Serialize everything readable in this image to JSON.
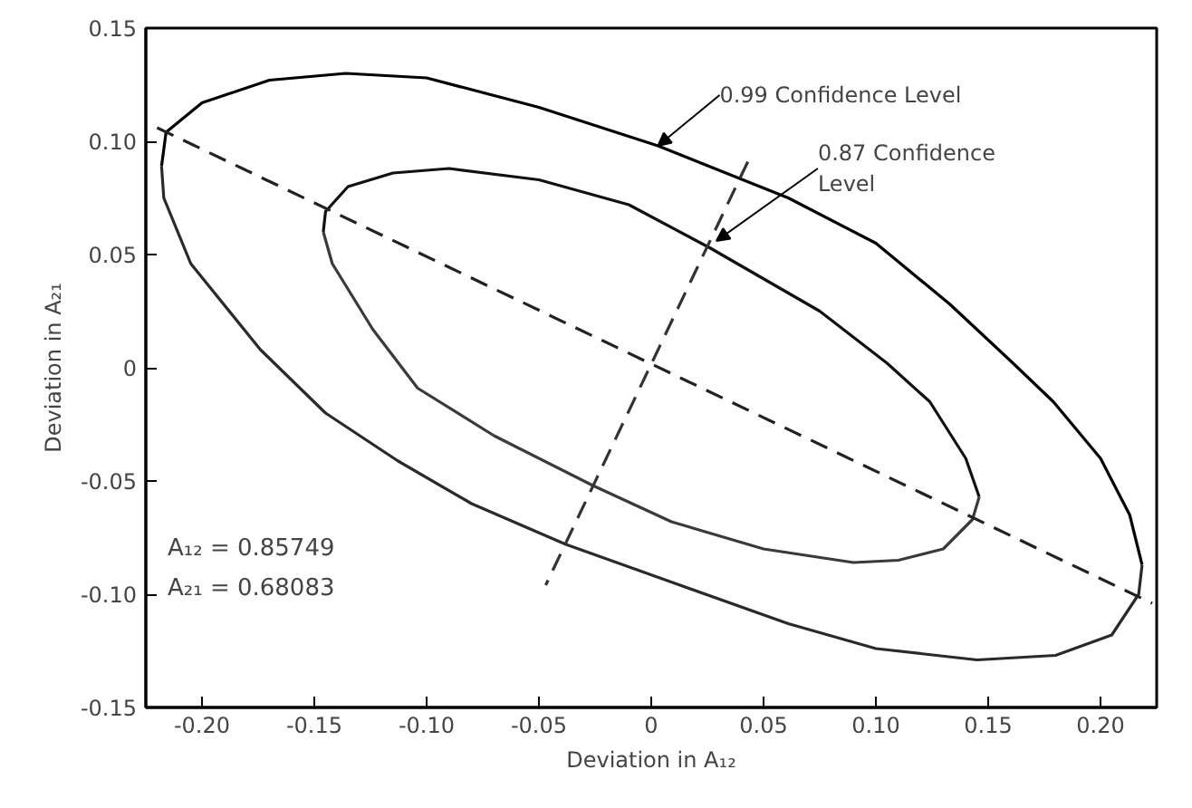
{
  "chart_data": {
    "type": "line",
    "xlabel": "Deviation in A₁₂",
    "ylabel": "Deviation in A₂₁",
    "xlim": [
      -0.225,
      0.225
    ],
    "ylim": [
      -0.15,
      0.15
    ],
    "xticks": [
      {
        "value": -0.2,
        "label": "-0.20"
      },
      {
        "value": -0.15,
        "label": "-0.15"
      },
      {
        "value": -0.1,
        "label": "-0.10"
      },
      {
        "value": -0.05,
        "label": "-0.05"
      },
      0,
      0.05,
      {
        "value": 0.1,
        "label": "0.10"
      },
      0.15,
      {
        "value": 0.2,
        "label": "0.20"
      }
    ],
    "yticks": [
      {
        "value": -0.15,
        "label": "-0.15"
      },
      {
        "value": -0.1,
        "label": "-0.10"
      },
      {
        "value": -0.05,
        "label": "-0.05"
      },
      0,
      0.05,
      {
        "value": 0.1,
        "label": "0.10"
      },
      0.15
    ],
    "grid": false,
    "marker": "none",
    "series": [
      {
        "color": "#000000",
        "line_style": "solid",
        "x": [
          -0.218,
          -0.216,
          -0.2,
          -0.17,
          -0.136,
          -0.1,
          -0.05,
          0.003,
          0.061,
          0.1,
          0.133,
          0.16,
          0.179,
          0.2,
          0.213,
          0.2185
        ],
        "values": [
          0.089,
          0.104,
          0.117,
          0.127,
          0.13,
          0.128,
          0.115,
          0.098,
          0.075,
          0.055,
          0.028,
          0.003,
          -0.015,
          -0.04,
          -0.065,
          -0.087
        ]
      },
      {
        "color": "#2a2a2a",
        "line_style": "solid",
        "x": [
          -0.218,
          -0.217,
          -0.205,
          -0.174,
          -0.145,
          -0.113,
          -0.08,
          -0.038,
          0.01,
          0.061,
          0.1,
          0.145,
          0.18,
          0.205,
          0.217,
          0.2185
        ],
        "values": [
          0.089,
          0.075,
          0.046,
          0.008,
          -0.02,
          -0.041,
          -0.06,
          -0.078,
          -0.095,
          -0.113,
          -0.124,
          -0.129,
          -0.127,
          -0.118,
          -0.1,
          -0.087
        ]
      },
      {
        "color": "#111111",
        "line_style": "solid",
        "x": [
          -0.146,
          -0.145,
          -0.135,
          -0.115,
          -0.09,
          -0.05,
          -0.01,
          0.026,
          0.075,
          0.105,
          0.124,
          0.14,
          0.146
        ],
        "values": [
          0.06,
          0.069,
          0.08,
          0.086,
          0.088,
          0.083,
          0.072,
          0.053,
          0.025,
          0.002,
          -0.015,
          -0.04,
          -0.057
        ]
      },
      {
        "color": "#3a3a3a",
        "line_style": "solid",
        "x": [
          -0.146,
          -0.142,
          -0.124,
          -0.104,
          -0.07,
          -0.026,
          0.009,
          0.05,
          0.09,
          0.11,
          0.13,
          0.143,
          0.146
        ],
        "values": [
          0.06,
          0.046,
          0.017,
          -0.009,
          -0.03,
          -0.052,
          -0.068,
          -0.08,
          -0.086,
          -0.085,
          -0.08,
          -0.067,
          -0.057
        ]
      },
      {
        "color": "#222222",
        "line_style": "dashed",
        "x": [
          -0.22,
          0.223
        ],
        "values": [
          0.106,
          -0.104
        ]
      },
      {
        "color": "#333333",
        "line_style": "dashed",
        "x": [
          0.043,
          -0.047
        ],
        "values": [
          0.091,
          -0.096
        ]
      }
    ],
    "annotations": [
      {
        "text": "0.99 Confidence Level",
        "x": 0.003,
        "y": 0.098
      },
      {
        "text": "0.87 Confidence\nLevel",
        "x": 0.029,
        "y": 0.056
      },
      "A₁₂ = 0.85749",
      "A₂₁ = 0.68083"
    ]
  }
}
